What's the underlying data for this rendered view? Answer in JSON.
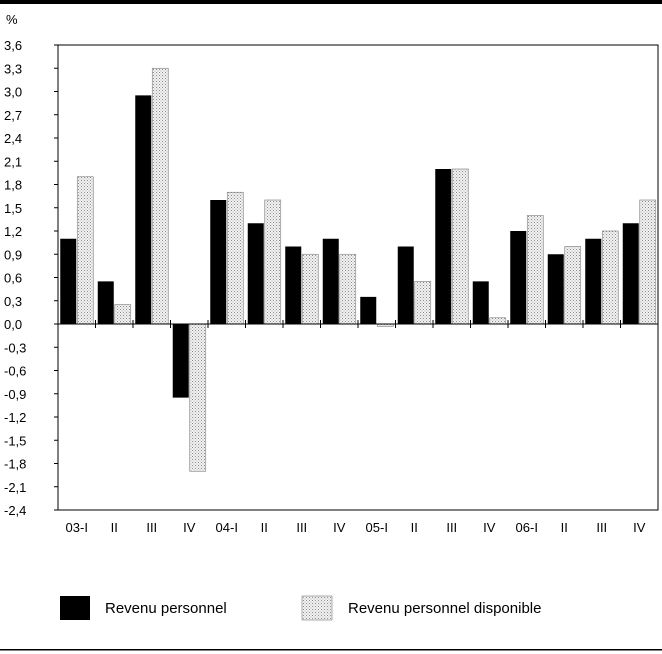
{
  "chart_data": {
    "type": "bar",
    "unit_label": "%",
    "categories": [
      "03-I",
      "II",
      "III",
      "IV",
      "04-I",
      "II",
      "III",
      "IV",
      "05-I",
      "II",
      "III",
      "IV",
      "06-I",
      "II",
      "III",
      "IV"
    ],
    "series": [
      {
        "name": "Revenu personnel",
        "color": "#000000",
        "values": [
          1.1,
          0.55,
          2.95,
          -0.95,
          1.6,
          1.3,
          1.0,
          1.1,
          0.35,
          1.0,
          2.0,
          0.55,
          1.2,
          0.9,
          1.1,
          1.3
        ]
      },
      {
        "name": "Revenu personnel disponible",
        "color": "#e0e0e0",
        "pattern": "dotted",
        "values": [
          1.9,
          0.25,
          3.3,
          -1.9,
          1.7,
          1.6,
          0.9,
          0.9,
          -0.03,
          0.55,
          2.0,
          0.08,
          1.4,
          1.0,
          1.2,
          1.6
        ]
      }
    ],
    "ylim": [
      -2.4,
      3.6
    ],
    "yticks": [
      "3,6",
      "3,3",
      "3,0",
      "2,7",
      "2,4",
      "2,1",
      "1,8",
      "1,5",
      "1,2",
      "0,9",
      "0,6",
      "0,3",
      "0,0",
      "-0,3",
      "-0,6",
      "-0,9",
      "-1,2",
      "-1,5",
      "-1,8",
      "-2,1",
      "-2,4"
    ],
    "ytick_values": [
      3.6,
      3.3,
      3.0,
      2.7,
      2.4,
      2.1,
      1.8,
      1.5,
      1.2,
      0.9,
      0.6,
      0.3,
      0.0,
      -0.3,
      -0.6,
      -0.9,
      -1.2,
      -1.5,
      -1.8,
      -2.1,
      -2.4
    ],
    "grid": false,
    "legend_position": "bottom"
  }
}
